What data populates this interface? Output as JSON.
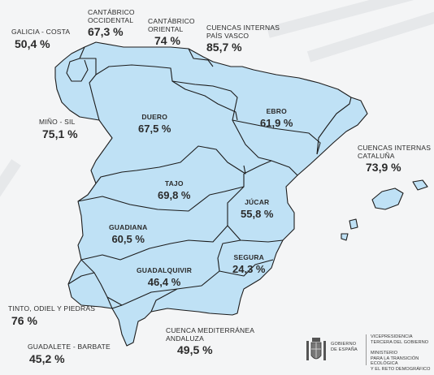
{
  "colors": {
    "region_fill": "#bfe1f5",
    "region_stroke": "#1c1c1c",
    "background": "#f4f5f6"
  },
  "basins": [
    {
      "id": "galicia-costa",
      "name": "GALICIA - COSTA",
      "value": "50,4 %"
    },
    {
      "id": "cantabrico-occidental",
      "name": "CANTÁBRICO\nOCCIDENTAL",
      "value": "67,3 %"
    },
    {
      "id": "cantabrico-oriental",
      "name": "CANTÁBRICO\nORIENTAL",
      "value": "74 %"
    },
    {
      "id": "cuencas-internas-pais-vasco",
      "name": "CUENCAS INTERNAS\nPAÍS VASCO",
      "value": "85,7 %"
    },
    {
      "id": "mino-sil",
      "name": "MIÑO - SIL",
      "value": "75,1 %"
    },
    {
      "id": "duero",
      "name": "DUERO",
      "value": "67,5 %"
    },
    {
      "id": "ebro",
      "name": "EBRO",
      "value": "61,9 %"
    },
    {
      "id": "cuencas-internas-cataluna",
      "name": "CUENCAS INTERNAS\nCATALUÑA",
      "value": "73,9 %"
    },
    {
      "id": "tajo",
      "name": "TAJO",
      "value": "69,8 %"
    },
    {
      "id": "jucar",
      "name": "JÚCAR",
      "value": "55,8 %"
    },
    {
      "id": "guadiana",
      "name": "GUADIANA",
      "value": "60,5 %"
    },
    {
      "id": "segura",
      "name": "SEGURA",
      "value": "24,3 %"
    },
    {
      "id": "guadalquivir",
      "name": "GUADALQUIVIR",
      "value": "46,4 %"
    },
    {
      "id": "tinto-odiel-piedras",
      "name": "TINTO, ODIEL Y PIEDRAS",
      "value": "76 %"
    },
    {
      "id": "guadalete-barbate",
      "name": "GUADALETE - BARBATE",
      "value": "45,2 %"
    },
    {
      "id": "cuenca-mediterranea-andaluza",
      "name": "CUENCA MEDITERRÁNEA\nANDALUZA",
      "value": "49,5 %"
    }
  ],
  "logo": {
    "gobierno": "GOBIERNO\nDE ESPAÑA",
    "vicepresidencia": "VICEPRESIDENCIA\nTERCERA DEL GOBIERNO",
    "ministerio": "MINISTERIO\nPARA LA TRANSICIÓN ECOLÓGICA\nY EL RETO DEMOGRÁFICO"
  }
}
